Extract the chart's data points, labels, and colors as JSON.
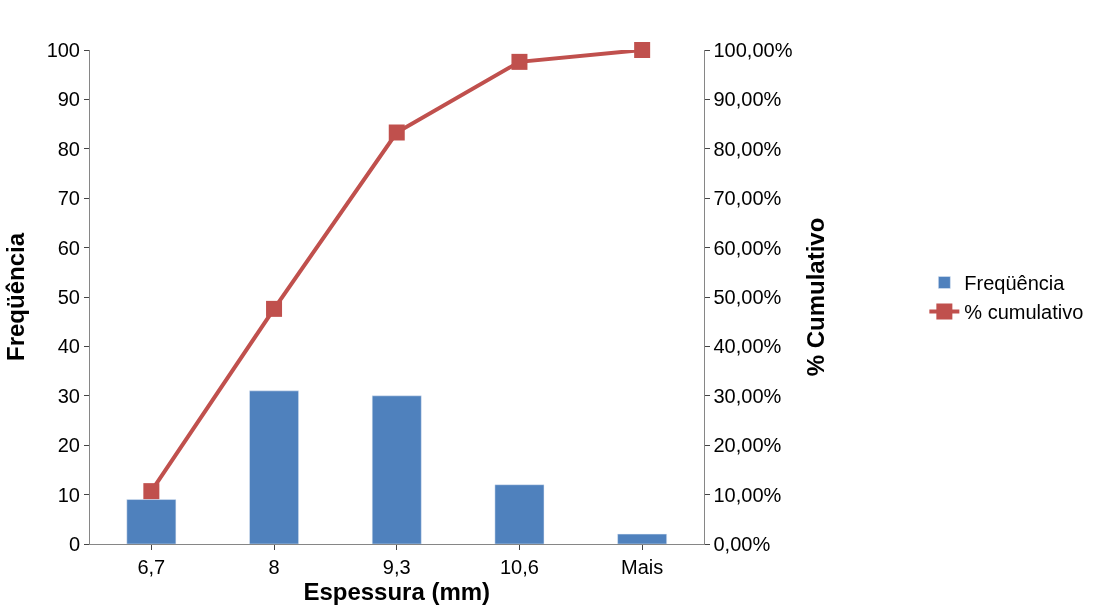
{
  "chart_data": {
    "type": "bar",
    "xlabel": "Espessura (mm)",
    "ylabel": "Freqüência",
    "y2label": "% Cumulativo",
    "categories": [
      "6,7",
      "8",
      "9,3",
      "10,6",
      "Mais"
    ],
    "series": [
      {
        "name": "Freqüência",
        "color": "#4f81bd",
        "values": [
          9,
          31,
          30,
          12,
          2
        ]
      },
      {
        "name": "% cumulativo",
        "type": "line",
        "axis": "y2",
        "color": "#c0504d",
        "marker": "square",
        "values": [
          10.7,
          47.6,
          83.3,
          97.6,
          100
        ]
      }
    ],
    "ylim": [
      0,
      100
    ],
    "yticks": [
      0,
      10,
      20,
      30,
      40,
      50,
      60,
      70,
      80,
      90,
      100
    ],
    "y2lim": [
      0,
      100
    ],
    "y2ticks": [
      {
        "value": 0,
        "label": "0,00%"
      },
      {
        "value": 10,
        "label": "10,00%"
      },
      {
        "value": 20,
        "label": "20,00%"
      },
      {
        "value": 30,
        "label": "30,00%"
      },
      {
        "value": 40,
        "label": "40,00%"
      },
      {
        "value": 50,
        "label": "50,00%"
      },
      {
        "value": 60,
        "label": "60,00%"
      },
      {
        "value": 70,
        "label": "70,00%"
      },
      {
        "value": 80,
        "label": "80,00%"
      },
      {
        "value": 90,
        "label": "90,00%"
      },
      {
        "value": 100,
        "label": "100,00%"
      }
    ],
    "legend": "right"
  }
}
